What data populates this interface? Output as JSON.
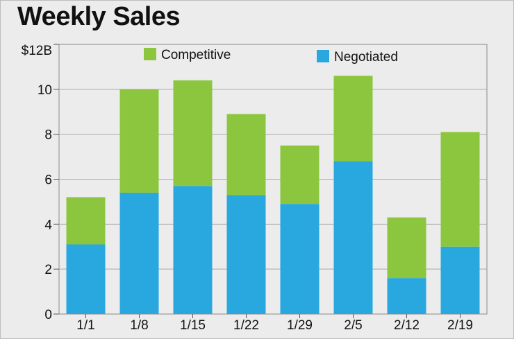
{
  "chart_data": {
    "type": "bar",
    "stacked": true,
    "title": "Weekly Sales",
    "xlabel": "",
    "ylabel": "",
    "categories": [
      "1/1",
      "1/8",
      "1/15",
      "1/22",
      "1/29",
      "2/5",
      "2/12",
      "2/19"
    ],
    "series": [
      {
        "name": "Negotiated",
        "color": "#29a8e0",
        "values": [
          3.1,
          5.4,
          5.7,
          5.3,
          4.9,
          6.8,
          1.6,
          3.0
        ]
      },
      {
        "name": "Competitive",
        "color": "#8cc63f",
        "values": [
          2.1,
          4.6,
          4.7,
          3.6,
          2.6,
          3.8,
          2.7,
          5.1
        ]
      }
    ],
    "ylim": [
      0,
      12
    ],
    "yticks": [
      0,
      2,
      4,
      6,
      8,
      10,
      12
    ],
    "ytick_labels": [
      "0",
      "2",
      "4",
      "6",
      "8",
      "10",
      "$12B"
    ],
    "grid": true,
    "legend": {
      "placement": "top",
      "order": [
        "Competitive",
        "Negotiated"
      ]
    }
  }
}
